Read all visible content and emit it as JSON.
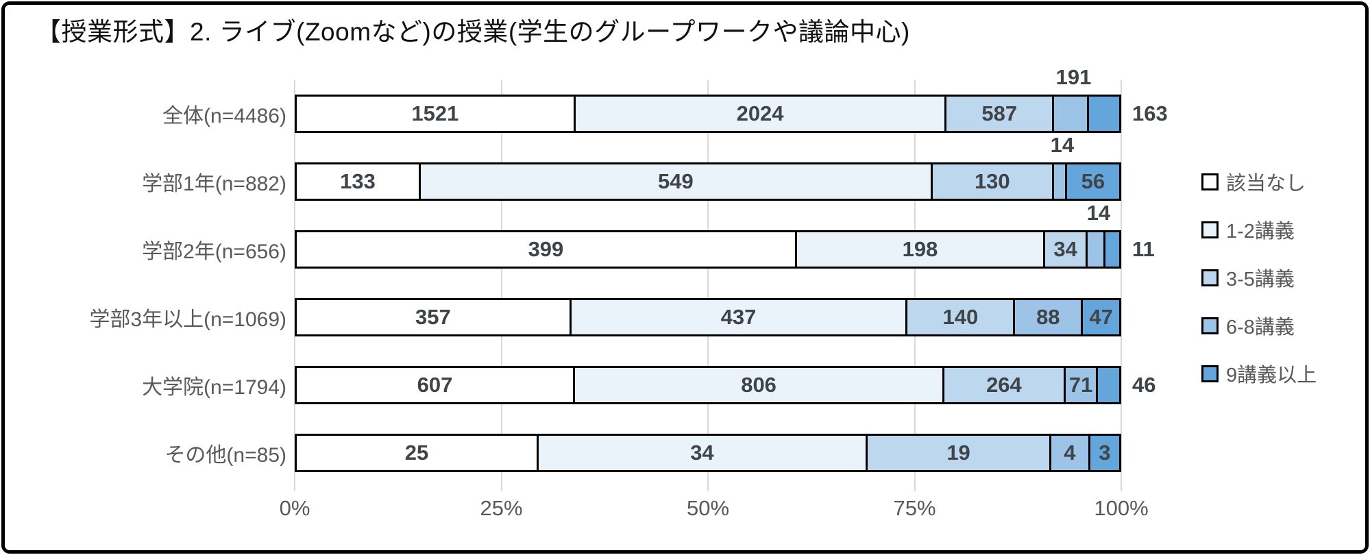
{
  "title": "【授業形式】2. ライブ(Zoomなど)の授業(学生のグループワークや議論中心)",
  "chart_data": {
    "type": "bar",
    "variant": "100%-stacked-horizontal",
    "title": "【授業形式】2. ライブ(Zoomなど)の授業(学生のグループワークや議論中心)",
    "series_names": [
      "該当なし",
      "1-2講義",
      "3-5講義",
      "6-8講義",
      "9講義以上"
    ],
    "series_colors": [
      "#FFFFFF",
      "#EAF3FA",
      "#BDD7EE",
      "#9DC3E6",
      "#64A5DC"
    ],
    "categories": [
      {
        "label": "全体(n=4486)",
        "total": 4486,
        "values": [
          1521,
          2024,
          587,
          191,
          163
        ],
        "label_positions": [
          "inside",
          "inside",
          "inside",
          "above",
          "right"
        ]
      },
      {
        "label": "学部1年(n=882)",
        "total": 882,
        "values": [
          133,
          549,
          130,
          14,
          56
        ],
        "label_positions": [
          "inside",
          "inside",
          "inside",
          "above",
          "inside"
        ]
      },
      {
        "label": "学部2年(n=656)",
        "total": 656,
        "values": [
          399,
          198,
          34,
          14,
          11
        ],
        "label_positions": [
          "inside",
          "inside",
          "inside",
          "above",
          "right"
        ]
      },
      {
        "label": "学部3年以上(n=1069)",
        "total": 1069,
        "values": [
          357,
          437,
          140,
          88,
          47
        ],
        "label_positions": [
          "inside",
          "inside",
          "inside",
          "inside",
          "inside"
        ]
      },
      {
        "label": "大学院(n=1794)",
        "total": 1794,
        "values": [
          607,
          806,
          264,
          71,
          46
        ],
        "label_positions": [
          "inside",
          "inside",
          "inside",
          "inside",
          "right"
        ]
      },
      {
        "label": "その他(n=85)",
        "total": 85,
        "values": [
          25,
          34,
          19,
          4,
          3
        ],
        "label_positions": [
          "inside",
          "inside",
          "inside",
          "inside",
          "inside"
        ]
      }
    ],
    "x_axis": {
      "tick_labels": [
        "0%",
        "25%",
        "50%",
        "75%",
        "100%"
      ],
      "tick_values": [
        0,
        25,
        50,
        75,
        100
      ],
      "range": [
        0,
        100
      ],
      "gridlines": true
    },
    "legend": {
      "position": "right",
      "labels": [
        "該当なし",
        "1-2講義",
        "3-5講義",
        "6-8講義",
        "9講義以上"
      ]
    }
  },
  "colors": {
    "frame_border": "#000000",
    "bar_border": "#000000",
    "gridline": "#D9D9D9",
    "axis_text": "#595959",
    "category_text": "#595959",
    "value_text": "#3F4448",
    "title_text": "#111111",
    "background": "#FFFFFF"
  }
}
